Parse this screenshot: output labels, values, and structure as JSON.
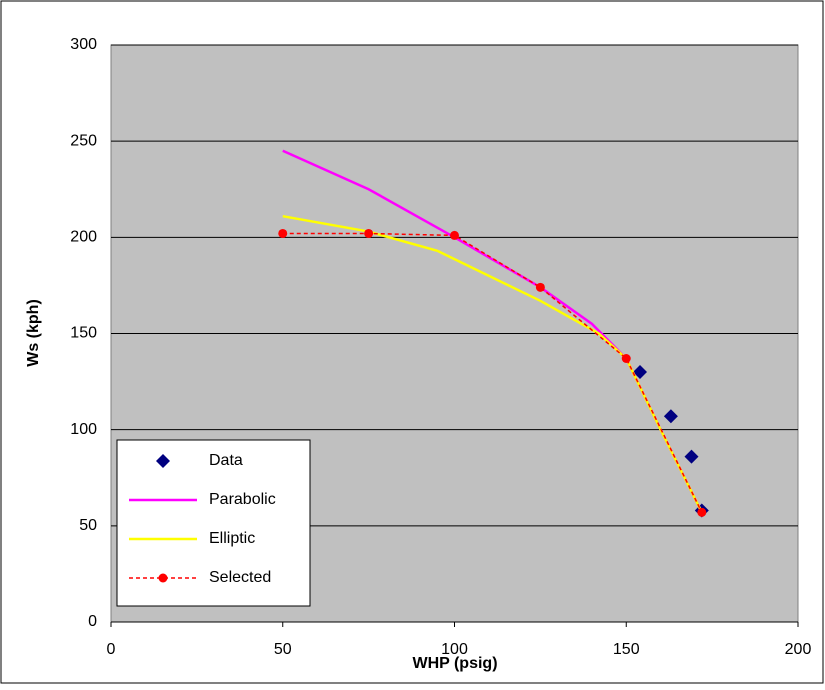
{
  "chart_data": {
    "type": "scatter",
    "xlabel": "WHP (psig)",
    "ylabel": "Ws (kph)",
    "xlim": [
      0,
      200
    ],
    "xticks": [
      0,
      50,
      100,
      150,
      200
    ],
    "ylim": [
      0,
      300
    ],
    "yticks": [
      0,
      50,
      100,
      150,
      200,
      250,
      300
    ],
    "grid": true,
    "legend": "lower left",
    "series": [
      {
        "name": "Data",
        "color": "#000080",
        "marker": "diamond",
        "line": false,
        "dashed": false,
        "x": [
          154,
          163,
          169,
          172
        ],
        "values": [
          130,
          107,
          86,
          58
        ]
      },
      {
        "name": "Parabolic",
        "color": "#ff00ff",
        "marker": null,
        "line": true,
        "dashed": false,
        "x": [
          50,
          75,
          100,
          125,
          140,
          150,
          160,
          172
        ],
        "values": [
          245,
          225,
          200,
          174,
          155,
          137,
          100,
          57
        ]
      },
      {
        "name": "Elliptic",
        "color": "#ffff00",
        "marker": null,
        "line": true,
        "dashed": false,
        "x": [
          50,
          75,
          95,
          125,
          142,
          150,
          160,
          172
        ],
        "values": [
          211,
          203,
          193,
          167,
          150,
          137,
          100,
          57
        ]
      },
      {
        "name": "Selected",
        "color": "#ff0000",
        "marker": "circle",
        "line": true,
        "dashed": true,
        "x": [
          50,
          75,
          100,
          125,
          150,
          172
        ],
        "values": [
          202,
          202,
          201,
          174,
          137,
          57
        ]
      }
    ]
  }
}
